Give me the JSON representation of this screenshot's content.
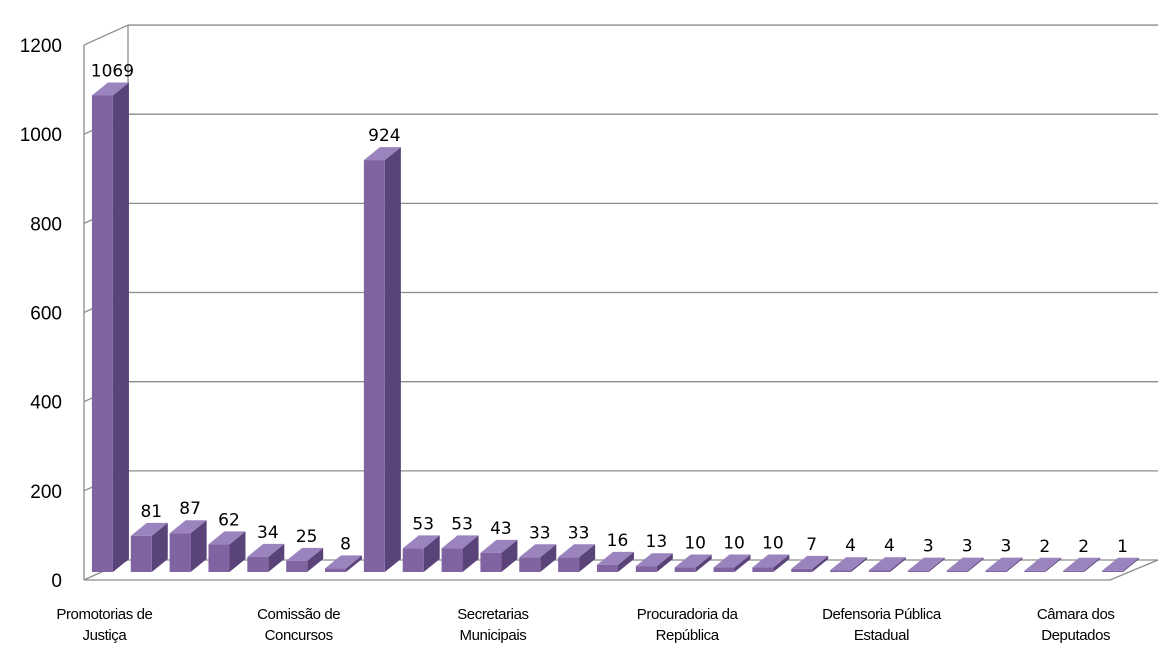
{
  "chart_data": {
    "type": "bar",
    "style": "3d-column",
    "bar_color": "#8064a2",
    "gridlines": true,
    "legend": "none",
    "ylim": [
      0,
      1200
    ],
    "yticks": [
      "0",
      "200",
      "400",
      "600",
      "800",
      "1000",
      "1200"
    ],
    "values": [
      1069,
      81,
      87,
      62,
      34,
      25,
      8,
      924,
      53,
      53,
      43,
      33,
      33,
      16,
      13,
      10,
      10,
      10,
      7,
      4,
      4,
      3,
      3,
      3,
      2,
      2,
      1
    ],
    "category_labels": [
      {
        "index": 0,
        "lines": [
          "Promotorias de",
          "Justiça"
        ]
      },
      {
        "index": 5,
        "lines": [
          "Comissão de",
          "Concursos"
        ]
      },
      {
        "index": 10,
        "lines": [
          "Secretarias",
          "Municipais"
        ]
      },
      {
        "index": 15,
        "lines": [
          "Procuradoria da",
          "República"
        ]
      },
      {
        "index": 20,
        "lines": [
          "Defensoria Pública",
          "Estadual"
        ]
      },
      {
        "index": 25,
        "lines": [
          "Câmara dos",
          "Deputados"
        ]
      }
    ]
  }
}
